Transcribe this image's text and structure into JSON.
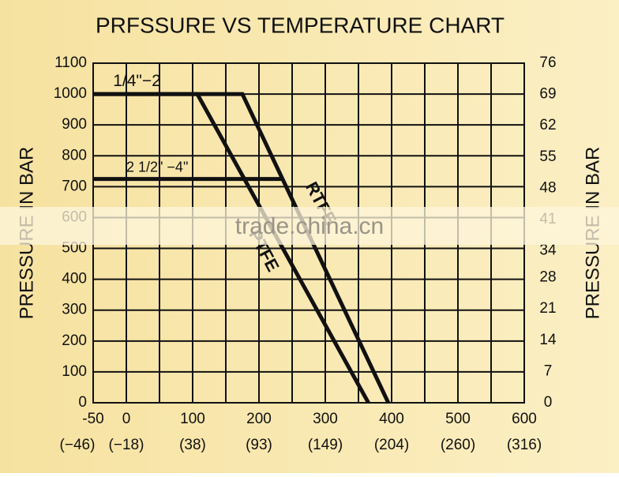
{
  "chart_data": {
    "type": "line",
    "title": "PRFSSURE VS TEMPERATURE CHART",
    "y_label": "PRESSURE IN BAR",
    "y2_label": "PRESSURE IN BAR",
    "xlim": [
      -50,
      600
    ],
    "xticks": [
      -50,
      0,
      100,
      200,
      300,
      400,
      500,
      600
    ],
    "x2ticklabels": [
      "(−46)",
      "(−18)",
      "(38)",
      "(93)",
      "(149)",
      "(204)",
      "(260)",
      "(316)"
    ],
    "ylim": [
      0,
      1100
    ],
    "yticks": [
      0,
      100,
      200,
      300,
      400,
      500,
      600,
      700,
      800,
      900,
      1000,
      1100
    ],
    "y2lim": [
      0,
      76
    ],
    "y2ticks": [
      0,
      7,
      14,
      21,
      28,
      34,
      41,
      48,
      55,
      62,
      69,
      76
    ],
    "grid": true,
    "series": [
      {
        "name": "PTFE",
        "color": "#111111",
        "x": [
          -50,
          107,
          365
        ],
        "values": [
          1000,
          1000,
          0
        ]
      },
      {
        "name": "RTFE",
        "color": "#111111",
        "x": [
          -50,
          175,
          395
        ],
        "values": [
          1000,
          1000,
          0
        ]
      },
      {
        "name": "2 1/2\" −4\"",
        "color": "#111111",
        "x": [
          -50,
          235
        ],
        "values": [
          725,
          725
        ]
      }
    ],
    "annotations": [
      {
        "text": "1/4\"−2",
        "x": -20,
        "y": 1040
      }
    ],
    "watermark": "trade.china.cn"
  }
}
